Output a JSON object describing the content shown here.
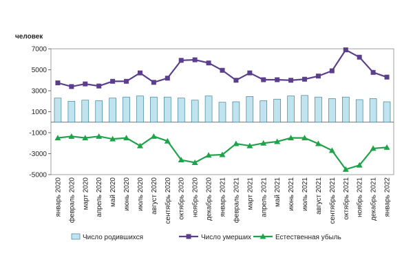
{
  "chart_data": {
    "type": "bar+line",
    "ylabel": "человек",
    "ylim": [
      -5000,
      7000
    ],
    "yticks": [
      -5000,
      -3000,
      -1000,
      1000,
      3000,
      5000,
      7000
    ],
    "categories": [
      "январь 2020",
      "февраль 2020",
      "март 2020",
      "апрель 2020",
      "май 2020",
      "июнь 2020",
      "июль 2020",
      "август 2020",
      "сентябрь 2020",
      "октябрь 2020",
      "ноябрь 2020",
      "декабрь 2020",
      "январь 2021",
      "февраль 2021",
      "март 2021",
      "апрель 2021",
      "май 2021",
      "июнь 2021",
      "июль 2021",
      "август 2021",
      "сентябрь 2021",
      "октябрь 2021",
      "ноябрь 2021",
      "декабрь 2021",
      "январь 2022"
    ],
    "series": [
      {
        "name": "Число родившихся",
        "kind": "bar",
        "color": "#bfe3ef",
        "values": [
          2300,
          2000,
          2100,
          2050,
          2300,
          2400,
          2500,
          2400,
          2400,
          2300,
          2100,
          2500,
          1900,
          1950,
          2450,
          2050,
          2200,
          2500,
          2550,
          2400,
          2250,
          2400,
          2150,
          2250,
          1950
        ]
      },
      {
        "name": "Число умерших",
        "kind": "line",
        "color": "#5b3f8c",
        "values": [
          3750,
          3400,
          3650,
          3450,
          3900,
          3900,
          4700,
          3800,
          4200,
          5900,
          5950,
          5650,
          4950,
          4000,
          4700,
          4050,
          4050,
          4000,
          4100,
          4400,
          4900,
          6900,
          6200,
          4750,
          4300
        ]
      },
      {
        "name": "Естественная убыль",
        "kind": "line",
        "color": "#1fa34a",
        "values": [
          -1500,
          -1350,
          -1500,
          -1350,
          -1600,
          -1500,
          -2250,
          -1350,
          -1800,
          -3600,
          -3850,
          -3150,
          -3100,
          -2050,
          -2250,
          -2000,
          -1850,
          -1500,
          -1500,
          -2050,
          -2700,
          -4500,
          -4100,
          -2500,
          -2400
        ]
      }
    ]
  }
}
